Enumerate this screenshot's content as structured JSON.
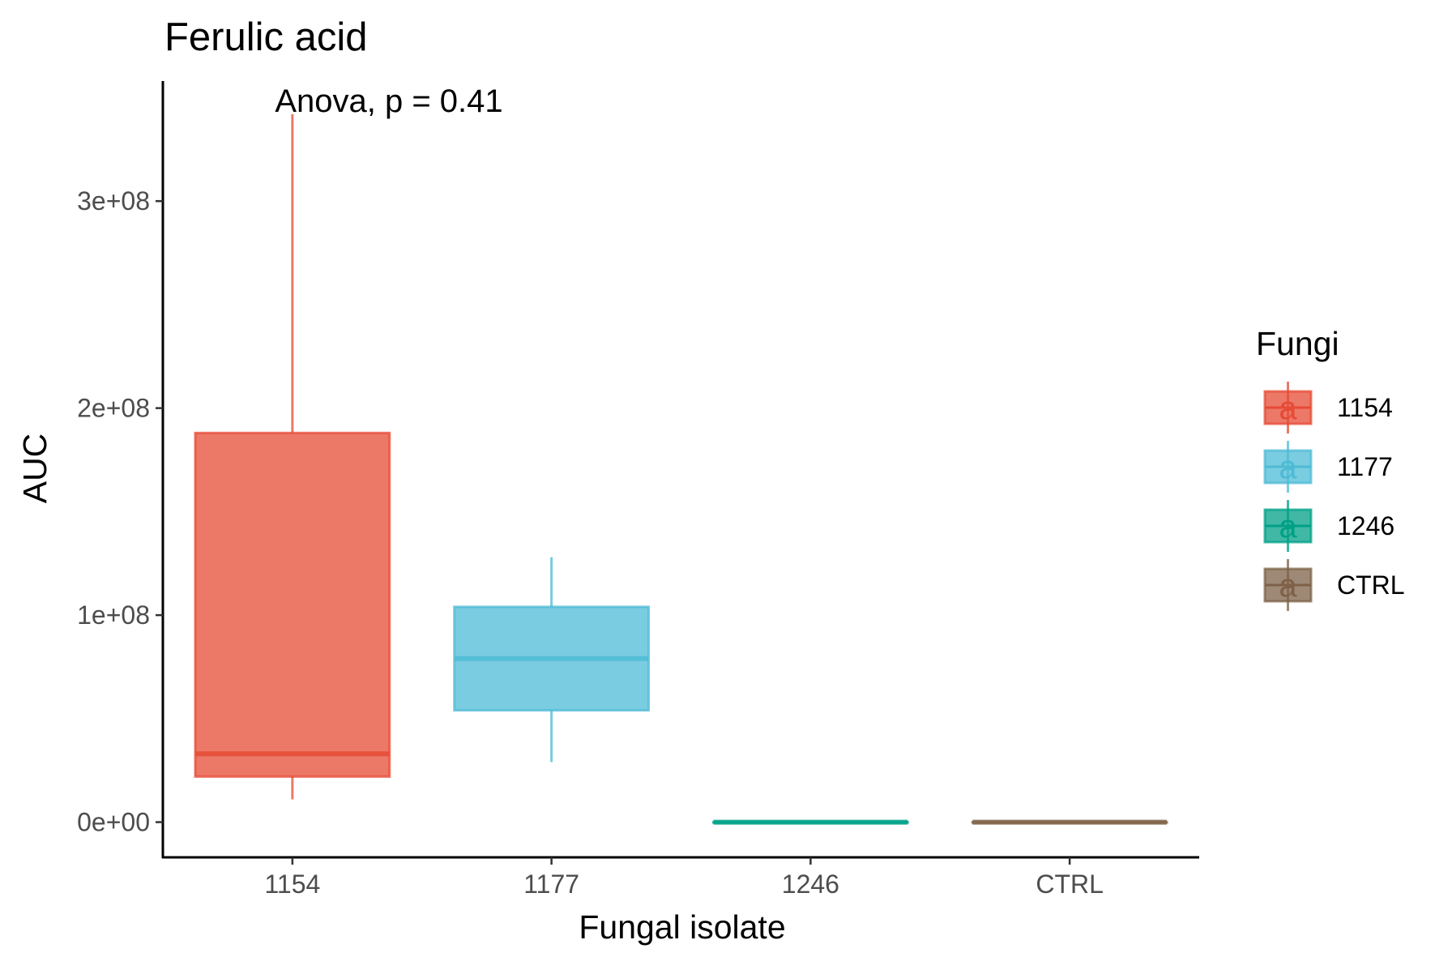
{
  "chart_data": {
    "type": "boxplot",
    "title": "Ferulic acid",
    "annotation": "Anova, p = 0.41",
    "xlabel": "Fungal isolate",
    "ylabel": "AUC",
    "categories": [
      "1154",
      "1177",
      "1246",
      "CTRL"
    ],
    "y_ticks": [
      0,
      100000000,
      200000000,
      300000000
    ],
    "y_tick_labels": [
      "0e+00",
      "1e+08",
      "2e+08",
      "3e+08"
    ],
    "ylim": [
      -17000000,
      358000000
    ],
    "grid": false,
    "legend": {
      "title": "Fungi",
      "position": "right",
      "glyph_text": "a",
      "entries": [
        "1154",
        "1177",
        "1246",
        "CTRL"
      ]
    },
    "series": [
      {
        "name": "1154",
        "color": "#E64B35",
        "min": 11000000,
        "q1": 22000000,
        "median": 33000000,
        "q3": 188000000,
        "max": 342000000
      },
      {
        "name": "1177",
        "color": "#4DBBD5",
        "min": 29000000,
        "q1": 54000000,
        "median": 79000000,
        "q3": 104000000,
        "max": 128000000
      },
      {
        "name": "1246",
        "color": "#00A087",
        "min": 0,
        "q1": 0,
        "median": 0,
        "q3": 0,
        "max": 0
      },
      {
        "name": "CTRL",
        "color": "#7E6148",
        "min": 0,
        "q1": 0,
        "median": 0,
        "q3": 0,
        "max": 0
      }
    ]
  }
}
